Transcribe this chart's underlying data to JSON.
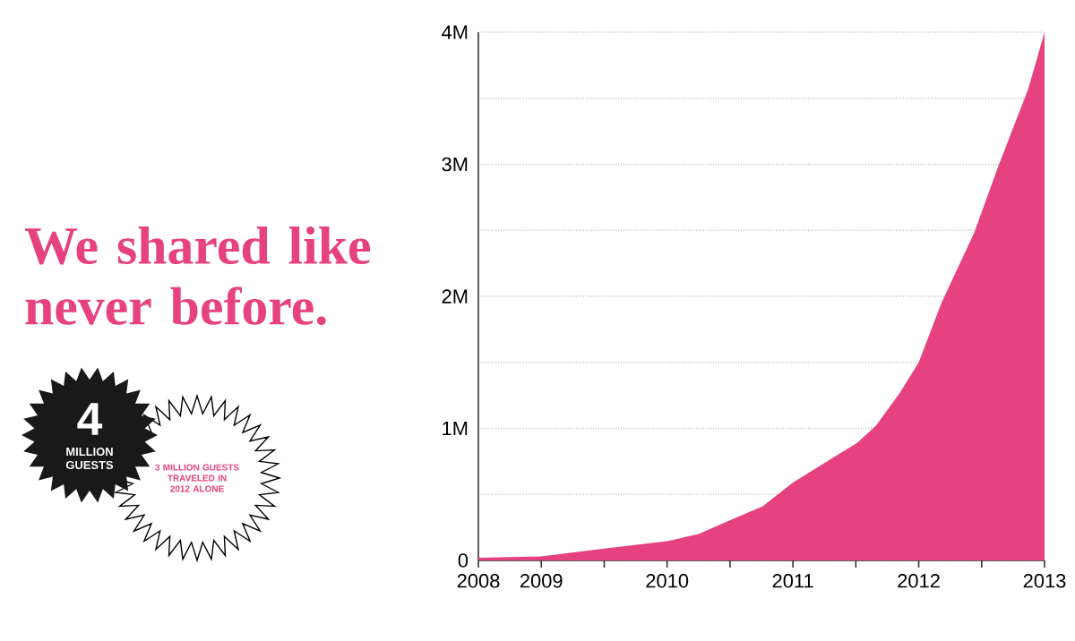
{
  "chart_data": {
    "type": "area",
    "title": "We shared like never before.",
    "annotations": [
      "4",
      "MILLION GUESTS",
      "3 MILLION GUESTS TRAVELED IN 2012 ALONE"
    ],
    "x": [
      2008.5,
      2009.0,
      2009.5,
      2010.0,
      2010.25,
      2010.49,
      2010.76,
      2011.0,
      2011.27,
      2011.51,
      2011.66,
      2011.85,
      2012.0,
      2012.18,
      2012.44,
      2012.63,
      2012.87,
      2013.0
    ],
    "values": [
      0.02,
      0.03,
      0.09,
      0.145,
      0.2,
      0.3,
      0.41,
      0.59,
      0.75,
      0.89,
      1.02,
      1.27,
      1.5,
      1.95,
      2.48,
      2.98,
      3.57,
      4.0
    ],
    "color": "#e5427f",
    "xlim": [
      2008.5,
      2013
    ],
    "xticks": [
      {
        "value": 2008.5,
        "label": "2008"
      },
      2009,
      {
        "value": 2009.5,
        "label": null
      },
      2010,
      {
        "value": 2010.5,
        "label": null
      },
      2011,
      {
        "value": 2011.5,
        "label": null
      },
      2012,
      {
        "value": 2012.5,
        "label": null
      },
      2013
    ],
    "ylim": [
      0,
      4
    ],
    "yticks": [
      0,
      {
        "value": 0.5,
        "label": null
      },
      {
        "value": 1,
        "label": "1M"
      },
      {
        "value": 1.5,
        "label": null
      },
      {
        "value": 2,
        "label": "2M"
      },
      {
        "value": 2.5,
        "label": null
      },
      {
        "value": 3,
        "label": "3M"
      },
      {
        "value": 3.5,
        "label": null
      },
      {
        "value": 4,
        "label": "4M"
      }
    ],
    "grid": "y"
  }
}
